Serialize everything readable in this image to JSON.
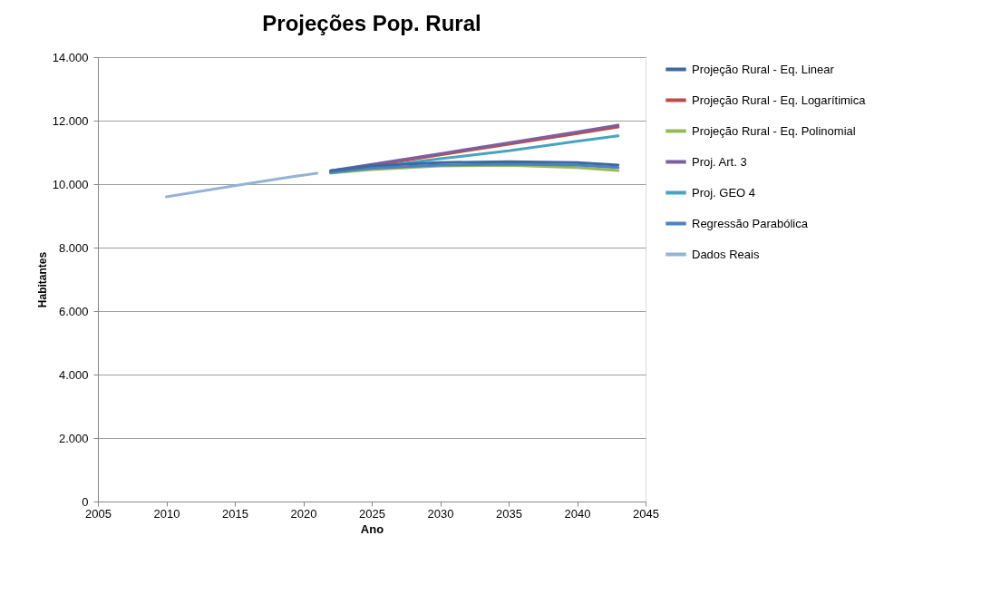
{
  "chart_data": {
    "type": "line",
    "title": "Projeções Pop. Rural",
    "xlabel": "Ano",
    "ylabel": "Habitantes",
    "xlim": [
      2005,
      2045
    ],
    "xticks": [
      2005,
      2010,
      2015,
      2020,
      2025,
      2030,
      2035,
      2040,
      2045
    ],
    "ylim": [
      0,
      14000
    ],
    "yticks": [
      {
        "value": 0,
        "label": "0"
      },
      {
        "value": 2000,
        "label": "2.000"
      },
      {
        "value": 4000,
        "label": "4.000"
      },
      {
        "value": 6000,
        "label": "6.000"
      },
      {
        "value": 8000,
        "label": "8.000"
      },
      {
        "value": 10000,
        "label": "10.000"
      },
      {
        "value": 12000,
        "label": "12.000"
      },
      {
        "value": 14000,
        "label": "14.000"
      }
    ],
    "grid": "y",
    "legend": "right",
    "marker": "none",
    "line_style": "solid",
    "series": [
      {
        "name": "Projeção Rural - Eq. Linear",
        "color": "#3d6a9e",
        "x": [
          2022,
          2025,
          2030,
          2035,
          2040,
          2043
        ],
        "values": [
          10420,
          10580,
          10680,
          10710,
          10680,
          10600
        ]
      },
      {
        "name": "Projeção Rural - Eq. Logarítimica",
        "color": "#be4b48",
        "x": [
          2022,
          2025,
          2030,
          2035,
          2040,
          2043
        ],
        "values": [
          10380,
          10580,
          10920,
          11260,
          11590,
          11800
        ]
      },
      {
        "name": "Projeção Rural - Eq. Polinomial",
        "color": "#98b954",
        "x": [
          2022,
          2025,
          2030,
          2035,
          2040,
          2043
        ],
        "values": [
          10350,
          10460,
          10570,
          10590,
          10520,
          10430
        ]
      },
      {
        "name": "Proj. Art. 3",
        "color": "#7d5fa0",
        "x": [
          2022,
          2025,
          2030,
          2035,
          2040,
          2043
        ],
        "values": [
          10420,
          10620,
          10960,
          11300,
          11640,
          11860
        ]
      },
      {
        "name": "Proj. GEO 4",
        "color": "#46a4bd",
        "x": [
          2022,
          2025,
          2030,
          2035,
          2040,
          2043
        ],
        "values": [
          10350,
          10520,
          10800,
          11050,
          11350,
          11520
        ]
      },
      {
        "name": "Regressão Parabólica",
        "color": "#4a82c4",
        "x": [
          2022,
          2025,
          2030,
          2035,
          2040,
          2043
        ],
        "values": [
          10380,
          10500,
          10600,
          10630,
          10600,
          10520
        ]
      },
      {
        "name": "Dados Reais",
        "color": "#95b3d7",
        "x": [
          2010,
          2015,
          2019,
          2021
        ],
        "values": [
          9600,
          9950,
          10220,
          10340
        ]
      }
    ]
  }
}
